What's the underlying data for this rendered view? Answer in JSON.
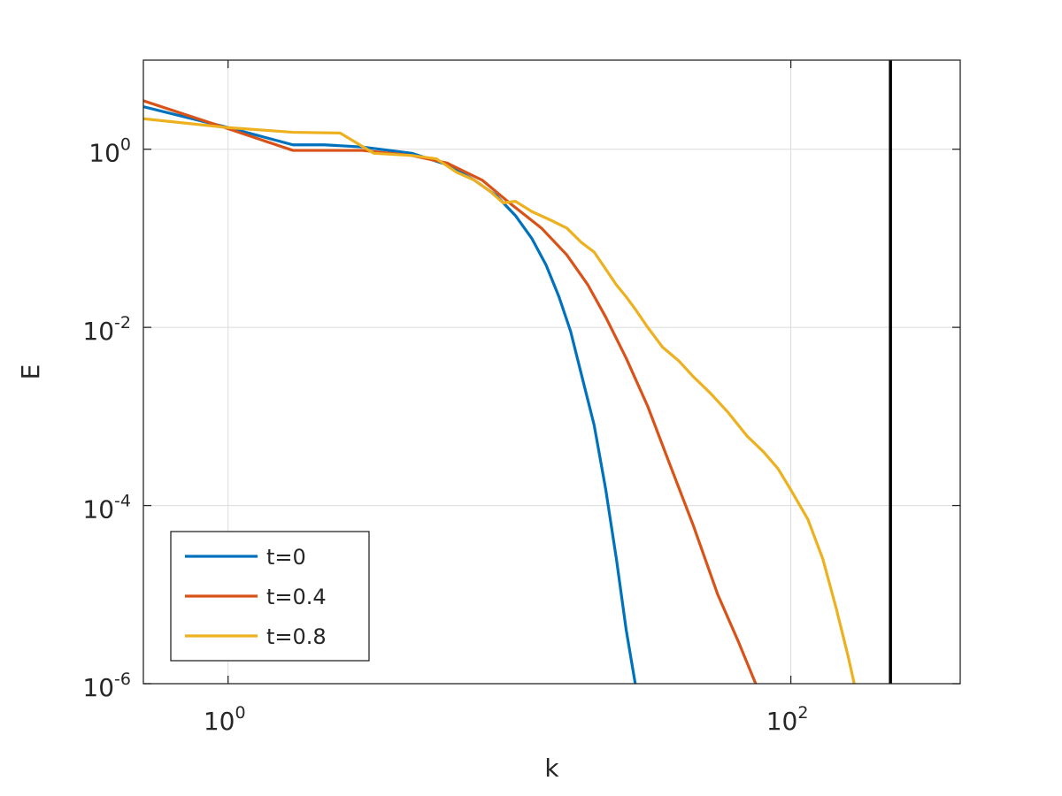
{
  "chart_data": {
    "type": "line",
    "xlabel": "k",
    "ylabel": "E",
    "xscale": "log",
    "yscale": "log",
    "xlim": [
      0.5,
      400
    ],
    "ylim": [
      1e-06,
      10
    ],
    "grid": true,
    "legend_position": "bottom-left",
    "xticks": [
      {
        "value": 1,
        "base": "10",
        "exp": "0"
      },
      {
        "value": 100,
        "base": "10",
        "exp": "2"
      }
    ],
    "yticks": [
      {
        "value": 1,
        "base": "10",
        "exp": "0"
      },
      {
        "value": 0.01,
        "base": "10",
        "exp": "-2"
      },
      {
        "value": 0.0001,
        "base": "10",
        "exp": "-4"
      },
      {
        "value": 1e-06,
        "base": "10",
        "exp": "-6"
      }
    ],
    "vertical_line": {
      "x": 226,
      "color": "#000000"
    },
    "series": [
      {
        "name": "t=0",
        "color": "#0072BD",
        "points": [
          [
            0.5,
            3.0
          ],
          [
            1,
            1.75
          ],
          [
            1.7,
            1.12
          ],
          [
            2.2,
            1.12
          ],
          [
            3,
            1.06
          ],
          [
            4.5,
            0.9
          ],
          [
            6,
            0.67
          ],
          [
            7.5,
            0.45
          ],
          [
            9,
            0.3
          ],
          [
            10.5,
            0.18
          ],
          [
            12,
            0.1
          ],
          [
            13.5,
            0.05
          ],
          [
            15,
            0.022
          ],
          [
            16.5,
            0.009
          ],
          [
            18,
            0.003
          ],
          [
            20,
            0.0008
          ],
          [
            22,
            0.00015
          ],
          [
            24,
            2.5e-05
          ],
          [
            26,
            4e-06
          ],
          [
            28,
            1e-06
          ]
        ]
      },
      {
        "name": "t=0.4",
        "color": "#D95319",
        "points": [
          [
            0.5,
            3.5
          ],
          [
            1,
            1.7
          ],
          [
            1.7,
            0.97
          ],
          [
            3,
            0.97
          ],
          [
            4.5,
            0.85
          ],
          [
            6,
            0.7
          ],
          [
            8,
            0.45
          ],
          [
            10,
            0.25
          ],
          [
            13,
            0.13
          ],
          [
            16,
            0.065
          ],
          [
            19,
            0.03
          ],
          [
            22,
            0.013
          ],
          [
            26,
            0.0045
          ],
          [
            31,
            0.0013
          ],
          [
            37,
            0.0003
          ],
          [
            45,
            6e-05
          ],
          [
            55,
            1e-05
          ],
          [
            65,
            3e-06
          ],
          [
            75,
            1e-06
          ]
        ]
      },
      {
        "name": "t=0.8",
        "color": "#EDB120",
        "points": [
          [
            0.5,
            2.2
          ],
          [
            1,
            1.75
          ],
          [
            1.7,
            1.55
          ],
          [
            2.5,
            1.52
          ],
          [
            3.3,
            0.9
          ],
          [
            4.5,
            0.85
          ],
          [
            5.5,
            0.78
          ],
          [
            6.5,
            0.55
          ],
          [
            7.5,
            0.45
          ],
          [
            8.5,
            0.34
          ],
          [
            9.5,
            0.25
          ],
          [
            10.5,
            0.26
          ],
          [
            12,
            0.2
          ],
          [
            14,
            0.16
          ],
          [
            16,
            0.13
          ],
          [
            18,
            0.09
          ],
          [
            20,
            0.07
          ],
          [
            22,
            0.045
          ],
          [
            24,
            0.03
          ],
          [
            26,
            0.022
          ],
          [
            28,
            0.016
          ],
          [
            31,
            0.01
          ],
          [
            35,
            0.006
          ],
          [
            40,
            0.0042
          ],
          [
            45,
            0.0028
          ],
          [
            52,
            0.0018
          ],
          [
            60,
            0.0011
          ],
          [
            70,
            0.0006
          ],
          [
            80,
            0.0004
          ],
          [
            90,
            0.00026
          ],
          [
            100,
            0.00015
          ],
          [
            115,
            7e-05
          ],
          [
            130,
            2.5e-05
          ],
          [
            145,
            7e-06
          ],
          [
            160,
            2e-06
          ],
          [
            168,
            1e-06
          ]
        ]
      }
    ]
  }
}
